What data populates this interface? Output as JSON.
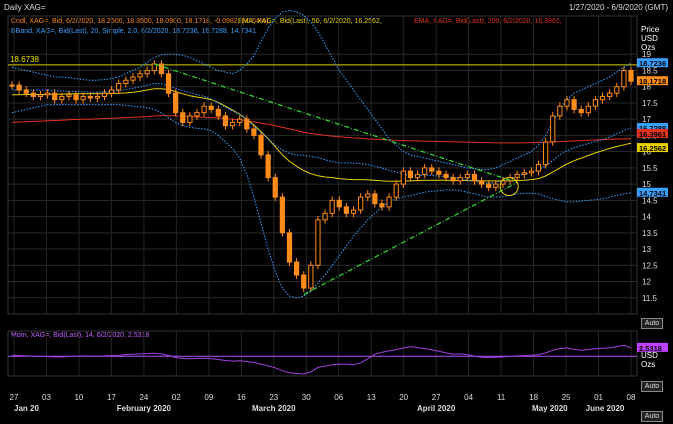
{
  "window": {
    "title": "Daily XAG=",
    "date_range": "1/27/2020 - 6/9/2020 (GMT)"
  },
  "legend": {
    "candle": {
      "label": "Cndl, XAG=, Bid, 6/2/2020, 18.2600, 18.3500, 18.0900, 18.1718, -0.0982, (-0.54%),",
      "color": "#ff8c1a"
    },
    "ema50": {
      "label": "EMA, XAG=, Bid(Last), 50, 6/2/2020, 16.2562,",
      "color": "#e8d000"
    },
    "ema200": {
      "label": "EMA, XAG=, Bid(Last), 200, 6/2/2020, 16.3961,",
      "color": "#e03020"
    },
    "bband": {
      "label": "BBand, XAG=, Bid(Last), 20, Simple, 2.0, 6/2/2020, 18.7236, 16.7288, 14.7341",
      "color": "#3aa0ff"
    }
  },
  "axis": {
    "unit": "Price",
    "currency": "USD",
    "qty": "Ozs",
    "mom_currency": "USD",
    "mom_qty": "Ozs",
    "auto_label": "Auto",
    "auto_label2": "Auto",
    "auto_label3": "Auto"
  },
  "price_tags": {
    "resistance": {
      "text": "18.6738",
      "color": "#e8e000"
    },
    "bb_upper": {
      "text": "18.7236",
      "color": "#3aa0ff"
    },
    "last": {
      "text": "18.1718",
      "color": "#ff8c1a"
    },
    "bb_mid": {
      "text": "16.7288",
      "color": "#3aa0ff"
    },
    "ema200": {
      "text": "16.3961",
      "color": "#e03020"
    },
    "ema50": {
      "text": "16.2562",
      "color": "#e8d000"
    },
    "bb_lower": {
      "text": "14.7341",
      "color": "#3aa0ff"
    },
    "mom": {
      "text": "2.5318",
      "color": "#c040ff"
    }
  },
  "momentum": {
    "label": "Mom, XAG=, Bid(Last), 14, 6/2/2020, 2.5318",
    "color": "#a040e0"
  },
  "chart_data": {
    "type": "candlestick",
    "symbol": "XAG=",
    "y_ticks": [
      "19",
      "18.5",
      "18",
      "17.5",
      "17",
      "16.5",
      "16",
      "15.5",
      "15",
      "14.5",
      "14",
      "13.5",
      "13",
      "12.5",
      "12",
      "11.5"
    ],
    "ylim": [
      11.0,
      19.5
    ],
    "x_day_ticks": [
      "27",
      "03",
      "10",
      "17",
      "24",
      "02",
      "09",
      "16",
      "23",
      "30",
      "06",
      "13",
      "20",
      "27",
      "04",
      "11",
      "18",
      "25",
      "01",
      "08"
    ],
    "x_month_labels": [
      "Jan 20",
      "February 2020",
      "March 2020",
      "April 2020",
      "May 2020",
      "June 2020"
    ],
    "series": {
      "close": [
        18.05,
        17.9,
        17.8,
        17.7,
        17.75,
        17.8,
        17.6,
        17.7,
        17.75,
        17.6,
        17.7,
        17.65,
        17.7,
        17.8,
        17.9,
        18.1,
        18.2,
        18.3,
        18.4,
        18.5,
        18.7,
        18.4,
        17.8,
        17.2,
        16.9,
        17.1,
        17.2,
        17.4,
        17.3,
        17.1,
        16.8,
        16.9,
        17.0,
        16.7,
        16.5,
        15.9,
        15.2,
        14.6,
        13.5,
        12.6,
        12.2,
        11.8,
        12.5,
        13.9,
        14.1,
        14.5,
        14.3,
        14.1,
        14.2,
        14.6,
        14.7,
        14.4,
        14.3,
        14.6,
        15.0,
        15.4,
        15.2,
        15.3,
        15.5,
        15.4,
        15.3,
        15.2,
        15.1,
        15.2,
        15.3,
        15.1,
        15.0,
        14.9,
        15.0,
        15.1,
        15.2,
        15.3,
        15.35,
        15.4,
        15.6,
        16.3,
        17.1,
        17.4,
        17.6,
        17.3,
        17.2,
        17.4,
        17.6,
        17.7,
        17.8,
        18.0,
        18.5,
        18.17
      ],
      "ema50": [
        17.75,
        17.75,
        17.76,
        17.76,
        17.76,
        17.77,
        17.77,
        17.77,
        17.78,
        17.78,
        17.78,
        17.78,
        17.78,
        17.78,
        17.79,
        17.8,
        17.81,
        17.83,
        17.86,
        17.9,
        17.94,
        17.94,
        17.91,
        17.85,
        17.78,
        17.72,
        17.68,
        17.65,
        17.6,
        17.52,
        17.4,
        17.28,
        17.15,
        17.0,
        16.82,
        16.62,
        16.4,
        16.15,
        15.9,
        15.7,
        15.55,
        15.42,
        15.32,
        15.26,
        15.22,
        15.2,
        15.17,
        15.15,
        15.14,
        15.14,
        15.13,
        15.12,
        15.1,
        15.09,
        15.09,
        15.1,
        15.1,
        15.11,
        15.12,
        15.12,
        15.12,
        15.12,
        15.11,
        15.11,
        15.11,
        15.11,
        15.1,
        15.1,
        15.1,
        15.1,
        15.1,
        15.11,
        15.12,
        15.14,
        15.17,
        15.25,
        15.37,
        15.5,
        15.62,
        15.72,
        15.8,
        15.88,
        15.96,
        16.03,
        16.1,
        16.16,
        16.21,
        16.26
      ],
      "ema200": [
        16.9,
        16.91,
        16.92,
        16.93,
        16.94,
        16.95,
        16.96,
        16.97,
        16.98,
        16.99,
        17.0,
        17.0,
        17.01,
        17.02,
        17.03,
        17.04,
        17.05,
        17.06,
        17.07,
        17.08,
        17.1,
        17.11,
        17.11,
        17.1,
        17.09,
        17.08,
        17.07,
        17.06,
        17.05,
        17.04,
        17.02,
        17.0,
        16.98,
        16.95,
        16.92,
        16.88,
        16.84,
        16.8,
        16.75,
        16.7,
        16.65,
        16.6,
        16.56,
        16.53,
        16.5,
        16.48,
        16.46,
        16.44,
        16.42,
        16.41,
        16.39,
        16.38,
        16.37,
        16.36,
        16.35,
        16.34,
        16.33,
        16.33,
        16.32,
        16.32,
        16.31,
        16.31,
        16.3,
        16.3,
        16.29,
        16.29,
        16.28,
        16.28,
        16.27,
        16.27,
        16.27,
        16.27,
        16.27,
        16.28,
        16.28,
        16.29,
        16.3,
        16.31,
        16.32,
        16.33,
        16.34,
        16.35,
        16.36,
        16.37,
        16.38,
        16.39,
        16.39,
        16.3961
      ],
      "bb_upper": [
        18.6,
        18.55,
        18.5,
        18.45,
        18.4,
        18.35,
        18.3,
        18.3,
        18.28,
        18.25,
        18.22,
        18.2,
        18.2,
        18.22,
        18.25,
        18.3,
        18.4,
        18.5,
        18.6,
        18.75,
        18.9,
        18.98,
        19.0,
        19.0,
        18.97,
        18.9,
        18.8,
        18.7,
        18.6,
        18.5,
        18.45,
        18.4,
        18.5,
        18.7,
        18.95,
        19.4,
        19.8,
        20.1,
        20.3,
        20.35,
        20.3,
        20.2,
        20.0,
        19.7,
        19.3,
        18.9,
        18.5,
        18.2,
        17.9,
        17.6,
        17.3,
        17.0,
        16.7,
        16.4,
        16.2,
        16.0,
        15.9,
        15.85,
        15.8,
        15.75,
        15.7,
        15.65,
        15.6,
        15.55,
        15.5,
        15.47,
        15.45,
        15.45,
        15.5,
        15.6,
        15.7,
        15.8,
        15.9,
        16.0,
        16.2,
        16.5,
        16.9,
        17.3,
        17.6,
        17.8,
        17.9,
        18.0,
        18.1,
        18.2,
        18.3,
        18.45,
        18.6,
        18.7236
      ],
      "bb_lower": [
        17.2,
        17.25,
        17.3,
        17.35,
        17.4,
        17.45,
        17.45,
        17.45,
        17.45,
        17.45,
        17.45,
        17.45,
        17.45,
        17.45,
        17.45,
        17.45,
        17.42,
        17.4,
        17.38,
        17.35,
        17.3,
        17.2,
        17.05,
        16.9,
        16.8,
        16.75,
        16.72,
        16.7,
        16.65,
        16.5,
        16.3,
        16.1,
        15.8,
        15.3,
        14.6,
        13.8,
        13.0,
        12.3,
        11.8,
        11.55,
        11.5,
        11.55,
        11.7,
        11.95,
        12.2,
        12.5,
        12.8,
        13.1,
        13.4,
        13.65,
        13.9,
        14.1,
        14.3,
        14.45,
        14.55,
        14.6,
        14.65,
        14.7,
        14.75,
        14.78,
        14.8,
        14.82,
        14.82,
        14.8,
        14.75,
        14.7,
        14.65,
        14.6,
        14.6,
        14.62,
        14.65,
        14.7,
        14.72,
        14.72,
        14.7,
        14.62,
        14.55,
        14.5,
        14.45,
        14.45,
        14.48,
        14.5,
        14.52,
        14.55,
        14.6,
        14.65,
        14.7,
        14.7341
      ],
      "bb_mid": [
        17.9,
        17.9,
        17.9,
        17.9,
        17.9,
        17.9,
        17.88,
        17.87,
        17.86,
        17.85,
        17.84,
        17.83,
        17.83,
        17.84,
        17.85,
        17.88,
        17.91,
        17.95,
        17.99,
        18.05,
        18.1,
        18.09,
        18.03,
        17.95,
        17.88,
        17.82,
        17.76,
        17.7,
        17.62,
        17.5,
        17.37,
        17.25,
        17.15,
        17.0,
        16.78,
        16.6,
        16.4,
        16.2,
        16.05,
        15.95,
        15.9,
        15.88,
        15.85,
        15.82,
        15.75,
        15.7,
        15.65,
        15.65,
        15.65,
        15.63,
        15.6,
        15.55,
        15.5,
        15.42,
        15.38,
        15.3,
        15.27,
        15.27,
        15.27,
        15.27,
        15.25,
        15.23,
        15.21,
        15.17,
        15.12,
        15.08,
        15.05,
        15.03,
        15.05,
        15.11,
        15.17,
        15.25,
        15.31,
        15.36,
        15.45,
        15.56,
        15.72,
        15.9,
        16.02,
        16.12,
        16.19,
        16.25,
        16.31,
        16.37,
        16.45,
        16.55,
        16.65,
        16.7288
      ],
      "momentum": [
        0.3,
        0.2,
        0.1,
        0.0,
        -0.1,
        -0.1,
        -0.2,
        -0.2,
        -0.1,
        0.0,
        0.1,
        0.0,
        0.0,
        0.1,
        0.2,
        0.3,
        0.5,
        0.6,
        0.7,
        0.8,
        0.9,
        0.7,
        0.2,
        -0.4,
        -0.7,
        -0.8,
        -0.7,
        -0.6,
        -0.8,
        -1.0,
        -1.3,
        -1.5,
        -1.4,
        -1.6,
        -1.9,
        -2.4,
        -2.9,
        -3.5,
        -4.4,
        -5.0,
        -5.2,
        -5.4,
        -4.8,
        -3.4,
        -3.0,
        -2.6,
        -2.4,
        -2.4,
        -2.6,
        -2.0,
        -0.8,
        0.6,
        1.2,
        1.6,
        2.0,
        2.5,
        2.9,
        2.6,
        2.3,
        1.9,
        1.5,
        1.0,
        0.6,
        0.7,
        0.5,
        0.0,
        -0.3,
        -0.4,
        -0.3,
        -0.2,
        -0.1,
        0.1,
        0.2,
        0.3,
        0.5,
        1.0,
        1.8,
        2.3,
        2.5,
        2.1,
        1.8,
        2.0,
        2.3,
        2.4,
        2.5,
        2.9,
        3.3,
        2.5318
      ]
    },
    "resistance_level": 18.6738
  }
}
